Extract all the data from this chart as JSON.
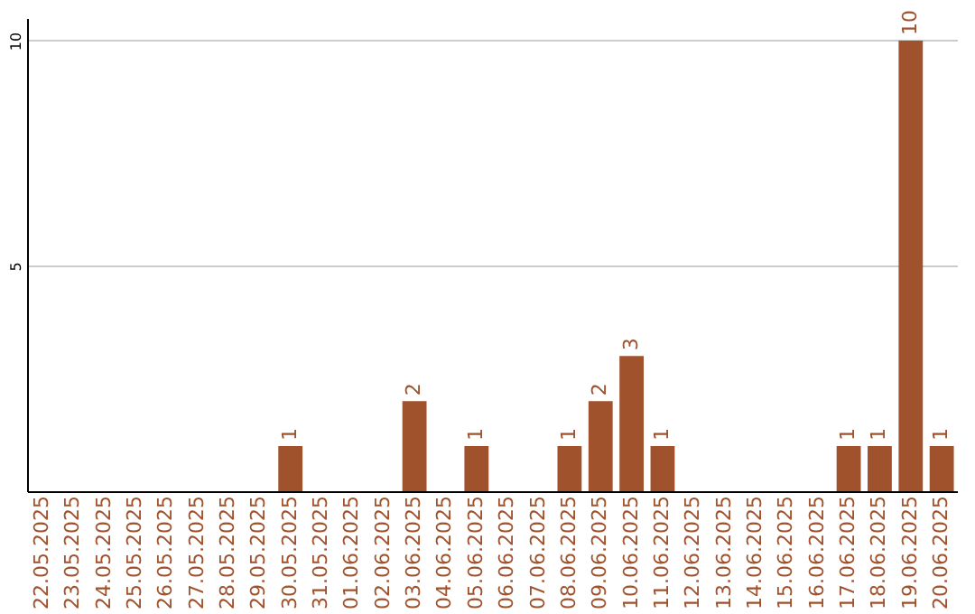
{
  "chart_data": {
    "type": "bar",
    "categories": [
      "22.05.2025",
      "23.05.2025",
      "24.05.2025",
      "25.05.2025",
      "26.05.2025",
      "27.05.2025",
      "28.05.2025",
      "29.05.2025",
      "30.05.2025",
      "31.05.2025",
      "01.06.2025",
      "02.06.2025",
      "03.06.2025",
      "04.06.2025",
      "05.06.2025",
      "06.06.2025",
      "07.06.2025",
      "08.06.2025",
      "09.06.2025",
      "10.06.2025",
      "11.06.2025",
      "12.06.2025",
      "13.06.2025",
      "14.06.2025",
      "15.06.2025",
      "16.06.2025",
      "17.06.2025",
      "18.06.2025",
      "19.06.2025",
      "20.06.2025"
    ],
    "values": [
      0,
      0,
      0,
      0,
      0,
      0,
      0,
      0,
      1,
      0,
      0,
      0,
      2,
      0,
      1,
      0,
      0,
      1,
      2,
      3,
      1,
      0,
      0,
      0,
      0,
      0,
      1,
      1,
      10,
      1
    ],
    "value_labels": [
      null,
      null,
      null,
      null,
      null,
      null,
      null,
      null,
      "1",
      null,
      null,
      null,
      "2",
      null,
      "1",
      null,
      null,
      "1",
      "2",
      "3",
      "1",
      null,
      null,
      null,
      null,
      null,
      "1",
      "1",
      "10",
      "1"
    ],
    "color": "#a0522d",
    "ylim": [
      0,
      10.5
    ],
    "yticks": [
      5,
      10
    ],
    "grid": "y"
  }
}
